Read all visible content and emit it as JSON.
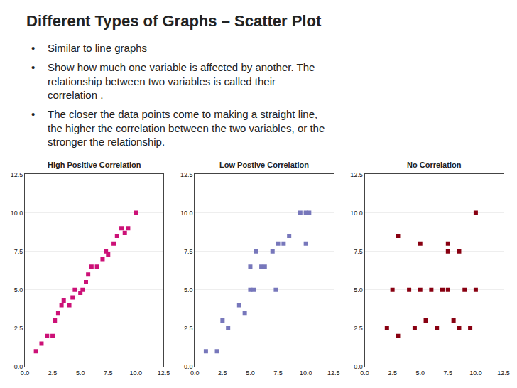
{
  "title": "Different Types of Graphs – Scatter Plot",
  "annotations": [
    "• Similar to line graphs",
    "• Show how much one variable is affected by another. The\nrelationship between two variables is called their\ncorrelation .",
    "• The closer the data points come to making a straight line,\nthe higher the correlation between the two variables, or the\nstronger the relationship."
  ],
  "chart_data": [
    {
      "type": "scatter",
      "title": "High Positive Correlation",
      "color": "#CC1177",
      "marker": "square",
      "x": [
        1.0,
        1.5,
        2.0,
        2.5,
        2.7,
        3.0,
        3.3,
        3.5,
        4.0,
        4.3,
        4.5,
        5.0,
        5.2,
        5.5,
        5.7,
        6.0,
        6.5,
        7.0,
        7.3,
        7.5,
        8.0,
        8.3,
        8.7,
        9.0,
        9.3,
        10.0
      ],
      "values": [
        1.0,
        1.5,
        2.0,
        2.0,
        3.0,
        3.5,
        4.0,
        4.3,
        4.0,
        4.5,
        5.0,
        4.8,
        5.0,
        5.5,
        6.0,
        6.5,
        6.5,
        7.0,
        7.5,
        7.3,
        8.0,
        8.5,
        9.0,
        8.7,
        9.0,
        10.0
      ],
      "xlim": [
        0,
        12.5
      ],
      "ylim": [
        0,
        12.5
      ],
      "xticks": [
        {
          "value": 0,
          "label": "0.0"
        },
        2.5,
        {
          "value": 5,
          "label": "5.0"
        },
        7.5,
        {
          "value": 10,
          "label": "10.0"
        },
        12.5
      ],
      "yticks": [
        {
          "value": 0,
          "label": "0.0"
        },
        2.5,
        {
          "value": 5,
          "label": "5.0"
        },
        7.5,
        {
          "value": 10,
          "label": "10.0"
        },
        12.5
      ],
      "grid": "y"
    },
    {
      "type": "scatter",
      "title": "Low Postive Correlation",
      "color": "#7777BB",
      "marker": "square",
      "x": [
        1.0,
        2.0,
        2.5,
        3.0,
        4.0,
        4.5,
        5.0,
        5.0,
        5.3,
        5.5,
        6.0,
        6.3,
        7.0,
        7.3,
        7.5,
        8.0,
        8.5,
        9.5,
        10.0,
        10.0,
        10.3
      ],
      "values": [
        1.0,
        1.0,
        3.0,
        2.5,
        4.0,
        3.5,
        5.0,
        6.5,
        5.0,
        7.5,
        6.5,
        6.5,
        7.5,
        5.0,
        8.0,
        8.0,
        8.5,
        10.0,
        10.0,
        8.0,
        10.0
      ],
      "xlim": [
        0,
        12.5
      ],
      "ylim": [
        0,
        12.5
      ],
      "xticks": [
        {
          "value": 0,
          "label": "0.0"
        },
        2.5,
        {
          "value": 5,
          "label": "5.0"
        },
        7.5,
        {
          "value": 10,
          "label": "10.0"
        },
        12.5
      ],
      "yticks": [
        {
          "value": 0,
          "label": "0.0"
        },
        2.5,
        {
          "value": 5,
          "label": "5.0"
        },
        7.5,
        {
          "value": 10,
          "label": "10.0"
        },
        12.5
      ],
      "grid": "y"
    },
    {
      "type": "scatter",
      "title": "No Correlation",
      "color": "#880011",
      "marker": "square",
      "x": [
        2.0,
        2.5,
        3.0,
        4.0,
        4.5,
        5.0,
        5.5,
        6.0,
        6.5,
        7.0,
        7.5,
        7.5,
        8.0,
        8.5,
        9.0,
        9.5,
        10.0,
        10.0,
        3.0,
        5.0,
        7.5,
        8.5
      ],
      "values": [
        2.5,
        5.0,
        2.0,
        5.0,
        2.5,
        5.0,
        3.0,
        5.0,
        2.5,
        5.0,
        7.5,
        5.0,
        3.0,
        7.5,
        5.0,
        2.5,
        5.0,
        10.0,
        8.5,
        8.0,
        8.0,
        2.5
      ],
      "xlim": [
        0,
        12.5
      ],
      "ylim": [
        0,
        12.5
      ],
      "xticks": [
        {
          "value": 0,
          "label": "0.0"
        },
        2.5,
        {
          "value": 5,
          "label": "5.0"
        },
        7.5,
        {
          "value": 10,
          "label": "10.0"
        },
        12.5
      ],
      "yticks": [
        {
          "value": 0,
          "label": "0.0"
        },
        2.5,
        {
          "value": 5,
          "label": "5.0"
        },
        7.5,
        {
          "value": 10,
          "label": "10.0"
        },
        12.5
      ],
      "grid": "y"
    }
  ]
}
